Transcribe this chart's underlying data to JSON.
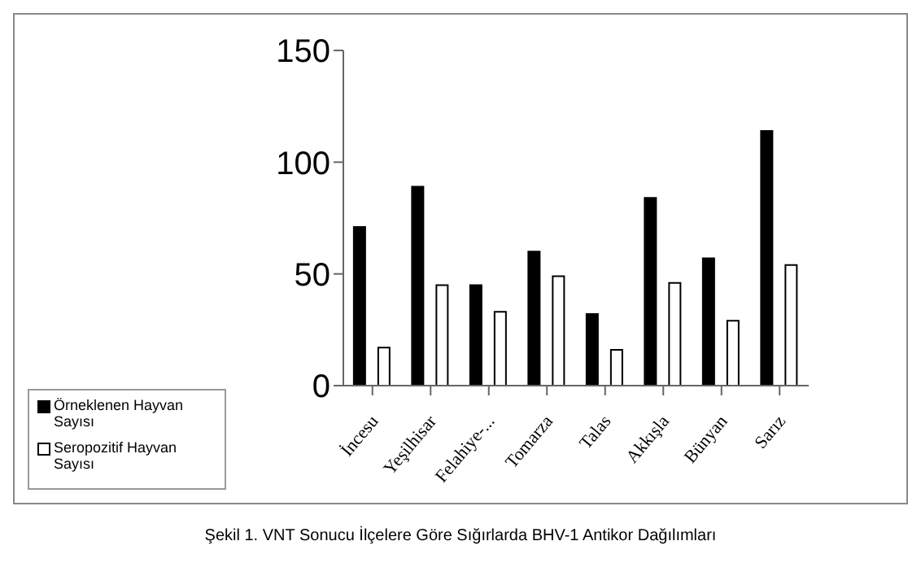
{
  "chart_data": {
    "type": "bar",
    "categories": [
      "İncesu",
      "Yeşilhisar",
      "Felahiye-...",
      "Tomarza",
      "Talas",
      "Akkışla",
      "Bünyan",
      "Sarız"
    ],
    "series": [
      {
        "name": "Örneklenen Hayvan Sayısı",
        "color": "#000000",
        "values": [
          71,
          89,
          45,
          60,
          32,
          84,
          57,
          114
        ]
      },
      {
        "name": "Seropozitif Hayvan Sayısı",
        "color": "#ffffff",
        "values": [
          17,
          45,
          33,
          49,
          16,
          46,
          29,
          54
        ]
      }
    ],
    "ylim": [
      0,
      150
    ],
    "yticks": [
      0,
      50,
      100,
      150
    ],
    "grid": false,
    "legend": "left",
    "annotations": [
      "Şekil 1. VNT Sonucu İlçelere Göre Sığırlarda BHV-1 Antikor Dağılımları"
    ]
  }
}
